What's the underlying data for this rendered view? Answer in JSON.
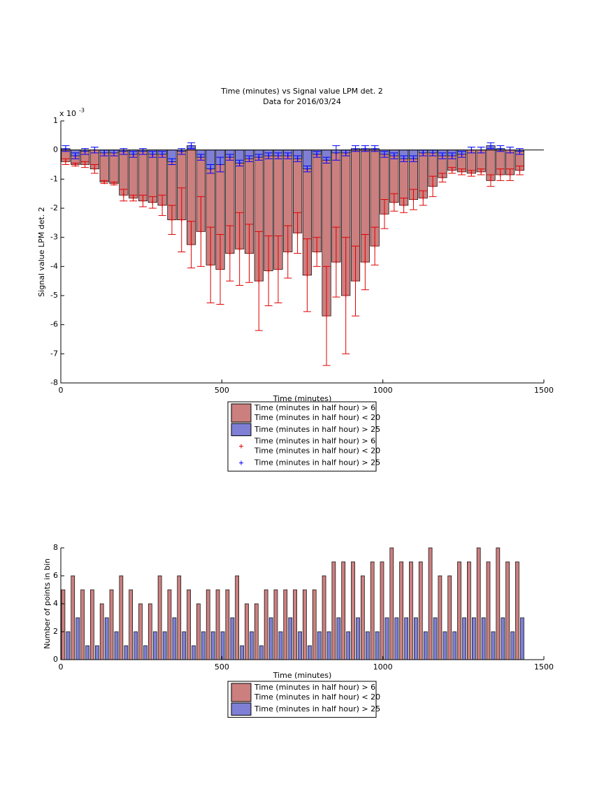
{
  "chart_data": [
    {
      "type": "bar",
      "barmode": "overlay",
      "title": "Time (minutes) vs Signal value LPM det. 2",
      "subtitle": "Data for 2016/03/24",
      "x_label": "Time (minutes)",
      "y_label": "Signal value LPM det. 2",
      "y_multiplier": "x 10",
      "y_multiplier_exponent": "-3",
      "x": [
        15,
        45,
        75,
        105,
        135,
        165,
        195,
        225,
        255,
        285,
        315,
        345,
        375,
        405,
        435,
        465,
        495,
        525,
        555,
        585,
        615,
        645,
        675,
        705,
        735,
        765,
        795,
        825,
        855,
        885,
        915,
        945,
        975,
        1005,
        1035,
        1065,
        1095,
        1125,
        1155,
        1185,
        1215,
        1245,
        1275,
        1305,
        1335,
        1365,
        1395,
        1425
      ],
      "xlim": [
        0,
        1500
      ],
      "xticks": [
        0,
        500,
        1000,
        1500
      ],
      "ylim": [
        -8,
        1
      ],
      "yticks": [
        -8,
        -7,
        -6,
        -5,
        -4,
        -3,
        -2,
        -1,
        0,
        1
      ],
      "series": [
        {
          "name": [
            "Time (minutes in half hour) > 6",
            "Time (minutes in half hour) < 20"
          ],
          "color": "#cc7f7f",
          "error_color": "#e00000",
          "values": [
            -0.4,
            -0.5,
            -0.5,
            -0.65,
            -1.1,
            -1.15,
            -1.55,
            -1.65,
            -1.75,
            -1.8,
            -1.9,
            -2.4,
            -2.4,
            -3.25,
            -2.8,
            -3.95,
            -4.1,
            -3.55,
            -3.4,
            -3.55,
            -4.5,
            -4.15,
            -4.1,
            -3.5,
            -2.85,
            -4.3,
            -3.5,
            -5.7,
            -3.85,
            -5.0,
            -4.5,
            -3.85,
            -3.3,
            -2.2,
            -1.8,
            -1.9,
            -1.7,
            -1.65,
            -1.25,
            -0.95,
            -0.7,
            -0.75,
            -0.8,
            -0.75,
            -1.05,
            -0.85,
            -0.85,
            -0.7
          ],
          "errors": [
            0.1,
            0.05,
            0.1,
            0.15,
            0.05,
            0.05,
            0.2,
            0.1,
            0.2,
            0.2,
            0.35,
            0.5,
            1.1,
            0.8,
            1.2,
            1.3,
            1.2,
            0.95,
            1.25,
            1.0,
            1.7,
            1.2,
            1.15,
            0.9,
            0.7,
            1.25,
            0.5,
            1.7,
            1.2,
            2.0,
            1.2,
            0.95,
            0.65,
            0.5,
            0.3,
            0.25,
            0.35,
            0.25,
            0.35,
            0.15,
            0.1,
            0.1,
            0.1,
            0.1,
            0.2,
            0.2,
            0.2,
            0.15
          ]
        },
        {
          "name": [
            "Time (minutes in half hour) > 25"
          ],
          "color": "#7f7fd6",
          "error_color": "#0000ff",
          "values": [
            0.05,
            -0.2,
            -0.05,
            0,
            -0.1,
            -0.1,
            -0.05,
            -0.15,
            -0.05,
            -0.15,
            -0.15,
            -0.4,
            -0.05,
            0.15,
            -0.25,
            -0.65,
            -0.5,
            -0.25,
            -0.45,
            -0.3,
            -0.25,
            -0.2,
            -0.2,
            -0.2,
            -0.3,
            -0.65,
            -0.15,
            -0.35,
            -0.1,
            -0.1,
            0.05,
            0.05,
            0.05,
            -0.15,
            -0.2,
            -0.3,
            -0.3,
            -0.1,
            -0.1,
            -0.2,
            -0.2,
            -0.15,
            0,
            0,
            0.15,
            0.05,
            0,
            -0.05
          ],
          "errors": [
            0.1,
            0.1,
            0.1,
            0.1,
            0.1,
            0.1,
            0.1,
            0.1,
            0.1,
            0.1,
            0.1,
            0.1,
            0.1,
            0.1,
            0.1,
            0.15,
            0.25,
            0.1,
            0.1,
            0.1,
            0.1,
            0.1,
            0.1,
            0.1,
            0.1,
            0.1,
            0.1,
            0.1,
            0.25,
            0.1,
            0.1,
            0.1,
            0.1,
            0.1,
            0.1,
            0.1,
            0.1,
            0.1,
            0.1,
            0.1,
            0.1,
            0.1,
            0.1,
            0.1,
            0.1,
            0.1,
            0.1,
            0.1
          ]
        }
      ]
    },
    {
      "type": "bar",
      "barmode": "grouped",
      "x_label": "Time (minutes)",
      "y_label": "Number of points in bin",
      "x": [
        15,
        45,
        75,
        105,
        135,
        165,
        195,
        225,
        255,
        285,
        315,
        345,
        375,
        405,
        435,
        465,
        495,
        525,
        555,
        585,
        615,
        645,
        675,
        705,
        735,
        765,
        795,
        825,
        855,
        885,
        915,
        945,
        975,
        1005,
        1035,
        1065,
        1095,
        1125,
        1155,
        1185,
        1215,
        1245,
        1275,
        1305,
        1335,
        1365,
        1395,
        1425
      ],
      "xlim": [
        0,
        1500
      ],
      "xticks": [
        0,
        500,
        1000,
        1500
      ],
      "ylim": [
        0,
        8
      ],
      "yticks": [
        0,
        2,
        4,
        6,
        8
      ],
      "series": [
        {
          "name": [
            "Time (minutes in half hour) > 6",
            "Time (minutes in half hour) < 20"
          ],
          "color": "#cc7f7f",
          "values": [
            5,
            6,
            5,
            5,
            4,
            5,
            6,
            5,
            4,
            4,
            6,
            5,
            6,
            5,
            4,
            5,
            5,
            5,
            6,
            4,
            4,
            5,
            5,
            5,
            5,
            5,
            5,
            6,
            7,
            7,
            7,
            6,
            7,
            7,
            8,
            7,
            7,
            7,
            8,
            6,
            6,
            7,
            7,
            8,
            7,
            8,
            7,
            7
          ]
        },
        {
          "name": [
            "Time (minutes in half hour) > 25"
          ],
          "color": "#7f7fd6",
          "values": [
            2,
            3,
            1,
            1,
            3,
            2,
            1,
            2,
            1,
            2,
            2,
            3,
            2,
            1,
            2,
            2,
            2,
            3,
            1,
            2,
            1,
            3,
            2,
            3,
            2,
            1,
            2,
            2,
            3,
            2,
            3,
            2,
            2,
            3,
            3,
            3,
            3,
            2,
            3,
            2,
            2,
            3,
            3,
            3,
            2,
            3,
            2,
            3
          ]
        }
      ]
    }
  ]
}
